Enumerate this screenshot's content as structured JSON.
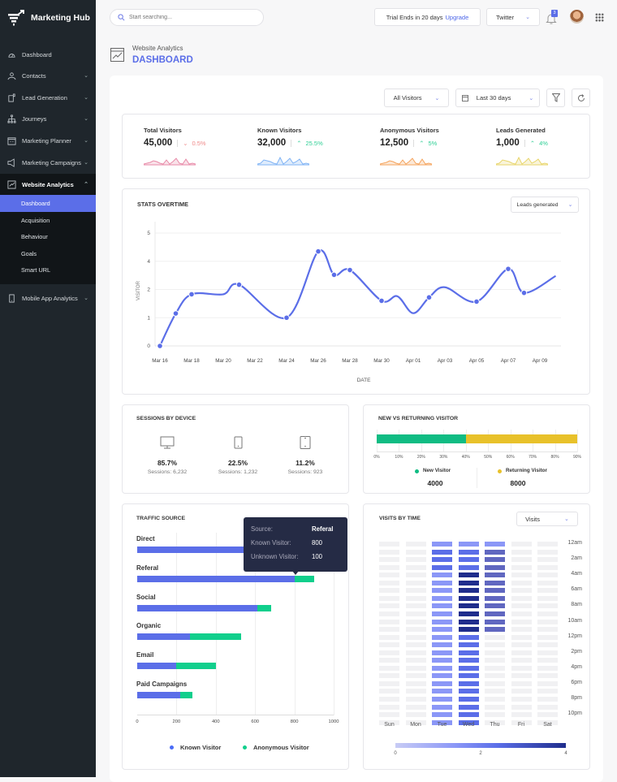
{
  "app": {
    "name": "Marketing Hub"
  },
  "topbar": {
    "search_placeholder": "Start searching...",
    "trial_text": "Trial Ends in 20 days",
    "upgrade_label": "Upgrade",
    "account_select": "Twitter",
    "notification_count": "3"
  },
  "sidebar": {
    "items": [
      {
        "label": "Dashboard",
        "icon": "gauge-icon",
        "chevron": false
      },
      {
        "label": "Contacts",
        "icon": "contacts-icon",
        "chevron": true
      },
      {
        "label": "Lead Generation",
        "icon": "lead-icon",
        "chevron": true
      },
      {
        "label": "Journeys",
        "icon": "sitemap-icon",
        "chevron": true
      },
      {
        "label": "Marketing Planner",
        "icon": "calendar-icon",
        "chevron": true
      },
      {
        "label": "Marketing Campaigns",
        "icon": "megaphone-icon",
        "chevron": true
      },
      {
        "label": "Website Analytics",
        "icon": "analytics-icon",
        "chevron": true,
        "expanded": true
      },
      {
        "label": "Mobile App Analytics",
        "icon": "mobile-icon",
        "chevron": true
      }
    ],
    "subitems": [
      "Dashboard",
      "Acquisition",
      "Behaviour",
      "Goals",
      "Smart URL"
    ],
    "active_sub": "Dashboard"
  },
  "page": {
    "breadcrumb": "Website Analytics",
    "title": "DASHBOARD"
  },
  "filters": {
    "visitors": "All Visitors",
    "range": "Last 30 days"
  },
  "kpis": [
    {
      "label": "Total Visitors",
      "value": "45,000",
      "delta": "0.5%",
      "trend": "down",
      "color": "#e88aa8"
    },
    {
      "label": "Known Visitors",
      "value": "32,000",
      "delta": "25.5%",
      "trend": "up",
      "color": "#7fb3f5"
    },
    {
      "label": "Anonymous Visitors",
      "value": "12,500",
      "delta": "5%",
      "trend": "up",
      "color": "#f5a35c"
    },
    {
      "label": "Leads Generated",
      "value": "1,000",
      "delta": "4%",
      "trend": "up",
      "color": "#e8d56a"
    }
  ],
  "stats": {
    "title": "STATS OVERTIME",
    "metric_select": "Leads generated"
  },
  "chart_data": [
    {
      "type": "line",
      "title": "STATS OVERTIME",
      "xlabel": "DATE",
      "ylabel": "VISITOR",
      "y_tick_labels": [
        "0",
        "1",
        "2",
        "4",
        "5"
      ],
      "x_tick_labels": [
        "Mar 16",
        "Mar 18",
        "Mar 20",
        "Mar 22",
        "Mar 24",
        "Mar 26",
        "Mar 28",
        "Mar 30",
        "Apr 01",
        "Apr 03",
        "Apr 05",
        "Apr 07",
        "Apr 09"
      ],
      "color": "#5b6ee8",
      "smooth": true,
      "grid": true,
      "points": [
        [
          "Mar 16",
          0,
          true
        ],
        [
          "Mar 17",
          1.15,
          true
        ],
        [
          "Mar 18",
          1.83,
          true
        ],
        [
          "Mar 20",
          1.83,
          false
        ],
        [
          "Mar 21",
          2.17,
          true
        ],
        [
          "Mar 24",
          1.0,
          true
        ],
        [
          "Mar 26",
          3.35,
          true
        ],
        [
          "Mar 27",
          2.52,
          true
        ],
        [
          "Mar 28",
          2.69,
          true
        ],
        [
          "Mar 30",
          1.6,
          true
        ],
        [
          "Mar 31",
          1.76,
          false
        ],
        [
          "Apr 01",
          1.16,
          false
        ],
        [
          "Apr 02",
          1.72,
          true
        ],
        [
          "Apr 03",
          2.08,
          false
        ],
        [
          "Apr 05",
          1.57,
          true
        ],
        [
          "Apr 07",
          2.73,
          true
        ],
        [
          "Apr 08",
          1.88,
          true
        ],
        [
          "Apr 10",
          2.48,
          false
        ]
      ]
    },
    {
      "type": "bar",
      "title": "NEW VS RETURNING VISITOR",
      "orientation": "horizontal",
      "stacked": true,
      "x_tick_labels": [
        "0%",
        "10%",
        "20%",
        "30%",
        "40%",
        "50%",
        "60%",
        "70%",
        "80%",
        "90%"
      ],
      "xlim": [
        0,
        90
      ],
      "series": [
        {
          "name": "New Visitor",
          "value_pct": 40,
          "total": "4000",
          "color": "#10bc83"
        },
        {
          "name": "Returning Visitor",
          "value_pct": 50,
          "total": "8000",
          "color": "#e8c12a"
        }
      ]
    },
    {
      "type": "bar",
      "title": "TRAFFIC SOURCE",
      "orientation": "horizontal",
      "stacked": true,
      "xlim": [
        0,
        1000
      ],
      "x_tick_labels": [
        "0",
        "200",
        "400",
        "600",
        "800",
        "1000"
      ],
      "categories": [
        "Direct",
        "Referal",
        "Social",
        "Organic",
        "Email",
        "Paid Campaigns"
      ],
      "series": [
        {
          "name": "Known Visitor",
          "color": "#5b6ee8",
          "values": [
            850,
            800,
            610,
            270,
            200,
            220
          ]
        },
        {
          "name": "Anonymous Visitor",
          "color": "#10cf8c",
          "values": [
            50,
            100,
            70,
            260,
            200,
            60
          ]
        }
      ],
      "tooltip": {
        "source_label": "Source:",
        "source": "Referal",
        "known_label": "Known Visitor:",
        "known": "800",
        "unknown_label": "Unknown Visitor:",
        "unknown": "100"
      }
    },
    {
      "type": "heatmap",
      "title": "VISITS BY TIME",
      "metric_select": "Visits",
      "columns": [
        "Sun",
        "Mon",
        "Tue",
        "Wed",
        "Thu",
        "Fri",
        "Sat"
      ],
      "row_labels": [
        "12am",
        "2am",
        "4am",
        "6am",
        "8am",
        "10am",
        "12pm",
        "2pm",
        "4pm",
        "6pm",
        "8pm",
        "10pm"
      ],
      "scale": {
        "min": 0,
        "max": 4,
        "tick_labels": [
          "0",
          "2",
          "4"
        ]
      },
      "rules": {
        "Tue": [
          1.5,
          2.5,
          2.5,
          2.5,
          1.5
        ],
        "Wed": [
          1.5,
          2.5,
          2.5,
          2.5,
          4,
          4,
          4,
          4,
          4,
          4,
          4,
          4,
          2.5
        ],
        "Thu": [
          1.5,
          3,
          3,
          3,
          3,
          3,
          3,
          3,
          3,
          3,
          3,
          3,
          0
        ]
      }
    }
  ],
  "sessions": {
    "title": "SESSIONS BY DEVICE",
    "devices": [
      {
        "icon": "desktop-icon",
        "pct": "85.7%",
        "sessions": "Sessions: 6,232"
      },
      {
        "icon": "mobile-icon",
        "pct": "22.5%",
        "sessions": "Sessions: 1,232"
      },
      {
        "icon": "tablet-icon",
        "pct": "11.2%",
        "sessions": "Sessions: 923"
      }
    ]
  }
}
